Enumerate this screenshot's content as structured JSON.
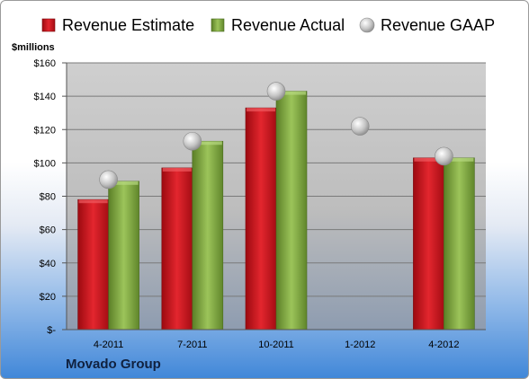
{
  "brand": "Movado Group",
  "chart_data": {
    "type": "bar",
    "unit_label": "$millions",
    "categories": [
      "4-2011",
      "7-2011",
      "10-2011",
      "1-2012",
      "4-2012"
    ],
    "series": [
      {
        "name": "Revenue Estimate",
        "kind": "bar",
        "color": "#d0121b",
        "values": [
          78,
          97,
          133,
          null,
          103
        ]
      },
      {
        "name": "Revenue Actual",
        "kind": "bar",
        "color": "#78a23a",
        "values": [
          89,
          113,
          143,
          null,
          103
        ]
      },
      {
        "name": "Revenue GAAP",
        "kind": "marker",
        "color": "#b9b9b9",
        "values": [
          90,
          113,
          143,
          122,
          104
        ]
      }
    ],
    "ylim": [
      0,
      160
    ],
    "yticks": [
      0,
      20,
      40,
      60,
      80,
      100,
      120,
      140,
      160
    ],
    "ytick_labels": [
      "$-",
      "$20",
      "$40",
      "$60",
      "$80",
      "$100",
      "$120",
      "$140",
      "$160"
    ],
    "grid": true,
    "legend_position": "top"
  }
}
